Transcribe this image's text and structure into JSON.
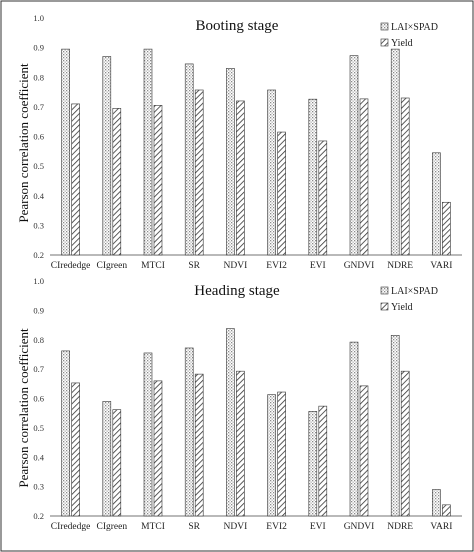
{
  "chart_data": [
    {
      "type": "bar",
      "title": "Booting stage",
      "ylabel": "Pearson correlation coefficient",
      "ylim": [
        0.2,
        1.0
      ],
      "yticks": [
        "0.2",
        "0.3",
        "0.4",
        "0.5",
        "0.6",
        "0.7",
        "0.8",
        "0.9",
        "1.0"
      ],
      "categories": [
        "CIrededge",
        "CIgreen",
        "MTCI",
        "SR",
        "NDVI",
        "EVI2",
        "EVI",
        "GNDVI",
        "NDRE",
        "VARI"
      ],
      "series": [
        {
          "name": "LAI×SPAD",
          "values": [
            0.895,
            0.87,
            0.895,
            0.845,
            0.83,
            0.757,
            0.726,
            0.873,
            0.895,
            0.545
          ]
        },
        {
          "name": "Yield",
          "values": [
            0.71,
            0.695,
            0.705,
            0.757,
            0.72,
            0.615,
            0.585,
            0.727,
            0.73,
            0.378
          ]
        }
      ],
      "legend_position": "top-right"
    },
    {
      "type": "bar",
      "title": "Heading stage",
      "ylabel": "Pearson correlation coefficient",
      "ylim": [
        0.2,
        1.0
      ],
      "yticks": [
        "0.2",
        "0.3",
        "0.4",
        "0.5",
        "0.6",
        "0.7",
        "0.8",
        "0.9",
        "1.0"
      ],
      "categories": [
        "CIrededge",
        "CIgreen",
        "MTCI",
        "SR",
        "NDVI",
        "EVI2",
        "EVI",
        "GNDVI",
        "NDRE",
        "VARI"
      ],
      "series": [
        {
          "name": "LAI×SPAD",
          "values": [
            0.762,
            0.59,
            0.755,
            0.772,
            0.838,
            0.613,
            0.556,
            0.792,
            0.815,
            0.29
          ]
        },
        {
          "name": "Yield",
          "values": [
            0.653,
            0.562,
            0.66,
            0.683,
            0.693,
            0.622,
            0.574,
            0.643,
            0.693,
            0.238
          ]
        }
      ],
      "legend_position": "top-right"
    }
  ]
}
